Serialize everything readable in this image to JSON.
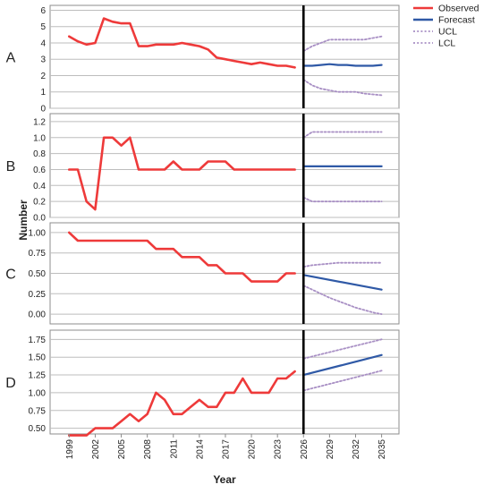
{
  "colors": {
    "observed": "#ee3a3a",
    "forecast": "#2f59a6",
    "ucl": "#a88fc4",
    "lcl": "#a88fc4",
    "grid": "#bdbdbd",
    "divider": "#000000",
    "frame": "#8c8c8c",
    "text": "#222222"
  },
  "chart_data": {
    "type": "line",
    "xlabel": "Year",
    "ylabel": "Number",
    "x_ticks": [
      "1999",
      "2002",
      "2005",
      "2008",
      "2011",
      "2014",
      "2017",
      "2020",
      "2023",
      "2026",
      "2029",
      "2032",
      "2035"
    ],
    "xlim": [
      1996.8,
      2037
    ],
    "divider_year": 2026,
    "grid": true,
    "legend": {
      "placement": "top-right",
      "entries": [
        {
          "key": "observed",
          "label": "Observed",
          "style": "solid"
        },
        {
          "key": "forecast",
          "label": "Forecast",
          "style": "solid"
        },
        {
          "key": "ucl",
          "label": "UCL",
          "style": "dotted"
        },
        {
          "key": "lcl",
          "label": "LCL",
          "style": "dotted"
        }
      ]
    },
    "panels": [
      {
        "label": "A",
        "ylim": [
          0,
          6.3
        ],
        "y_ticks": [
          "0",
          "1",
          "2",
          "3",
          "4",
          "5",
          "6"
        ],
        "y_tick_values": [
          0,
          1,
          2,
          3,
          4,
          5,
          6
        ],
        "observed": {
          "x": [
            1999,
            2000,
            2001,
            2002,
            2003,
            2004,
            2005,
            2006,
            2007,
            2008,
            2009,
            2010,
            2011,
            2012,
            2013,
            2014,
            2015,
            2016,
            2017,
            2018,
            2019,
            2020,
            2021,
            2022,
            2023,
            2024,
            2025
          ],
          "y": [
            4.4,
            4.1,
            3.9,
            4.0,
            5.5,
            5.3,
            5.2,
            5.2,
            3.8,
            3.8,
            3.9,
            3.9,
            3.9,
            4.0,
            3.9,
            3.8,
            3.6,
            3.1,
            3.0,
            2.9,
            2.8,
            2.7,
            2.8,
            2.7,
            2.6,
            2.6,
            2.5
          ]
        },
        "forecast": {
          "x": [
            2026,
            2027,
            2028,
            2029,
            2030,
            2031,
            2032,
            2033,
            2034,
            2035
          ],
          "y": [
            2.6,
            2.6,
            2.65,
            2.7,
            2.65,
            2.65,
            2.6,
            2.6,
            2.6,
            2.65
          ]
        },
        "ucl": {
          "x": [
            2026,
            2027,
            2028,
            2029,
            2030,
            2031,
            2032,
            2033,
            2034,
            2035
          ],
          "y": [
            3.5,
            3.8,
            4.0,
            4.2,
            4.2,
            4.2,
            4.2,
            4.2,
            4.3,
            4.4
          ]
        },
        "lcl": {
          "x": [
            2026,
            2027,
            2028,
            2029,
            2030,
            2031,
            2032,
            2033,
            2034,
            2035
          ],
          "y": [
            1.75,
            1.4,
            1.2,
            1.1,
            1.0,
            1.0,
            1.0,
            0.9,
            0.85,
            0.8
          ]
        }
      },
      {
        "label": "B",
        "ylim": [
          0,
          1.3
        ],
        "y_ticks": [
          "0.0",
          "0.2",
          "0.4",
          "0.6",
          "0.8",
          "1.0",
          "1.2"
        ],
        "y_tick_values": [
          0,
          0.2,
          0.4,
          0.6,
          0.8,
          1.0,
          1.2
        ],
        "observed": {
          "x": [
            1999,
            2000,
            2001,
            2002,
            2003,
            2004,
            2005,
            2006,
            2007,
            2008,
            2009,
            2010,
            2011,
            2012,
            2013,
            2014,
            2015,
            2016,
            2017,
            2018,
            2019,
            2020,
            2021,
            2022,
            2023,
            2024,
            2025
          ],
          "y": [
            0.6,
            0.6,
            0.2,
            0.1,
            1.0,
            1.0,
            0.9,
            1.0,
            0.6,
            0.6,
            0.6,
            0.6,
            0.7,
            0.6,
            0.6,
            0.6,
            0.7,
            0.7,
            0.7,
            0.6,
            0.6,
            0.6,
            0.6,
            0.6,
            0.6,
            0.6,
            0.6
          ]
        },
        "forecast": {
          "x": [
            2026,
            2035
          ],
          "y": [
            0.64,
            0.64
          ]
        },
        "ucl": {
          "x": [
            2026,
            2027,
            2035
          ],
          "y": [
            1.0,
            1.07,
            1.07
          ]
        },
        "lcl": {
          "x": [
            2026,
            2027,
            2035
          ],
          "y": [
            0.25,
            0.2,
            0.2
          ]
        }
      },
      {
        "label": "C",
        "ylim": [
          -0.12,
          1.12
        ],
        "y_ticks": [
          "0.00",
          "0.25",
          "0.50",
          "0.75",
          "1.00"
        ],
        "y_tick_values": [
          0,
          0.25,
          0.5,
          0.75,
          1.0
        ],
        "observed": {
          "x": [
            1999,
            2000,
            2001,
            2002,
            2003,
            2004,
            2005,
            2006,
            2007,
            2008,
            2009,
            2010,
            2011,
            2012,
            2013,
            2014,
            2015,
            2016,
            2017,
            2018,
            2019,
            2020,
            2021,
            2022,
            2023,
            2024,
            2025
          ],
          "y": [
            1.0,
            0.9,
            0.9,
            0.9,
            0.9,
            0.9,
            0.9,
            0.9,
            0.9,
            0.9,
            0.8,
            0.8,
            0.8,
            0.7,
            0.7,
            0.7,
            0.6,
            0.6,
            0.5,
            0.5,
            0.5,
            0.4,
            0.4,
            0.4,
            0.4,
            0.5,
            0.5
          ]
        },
        "forecast": {
          "x": [
            2026,
            2035
          ],
          "y": [
            0.48,
            0.3
          ]
        },
        "ucl": {
          "x": [
            2026,
            2027,
            2028,
            2029,
            2030,
            2031,
            2032,
            2033,
            2034,
            2035
          ],
          "y": [
            0.58,
            0.6,
            0.61,
            0.62,
            0.63,
            0.63,
            0.63,
            0.63,
            0.63,
            0.63
          ]
        },
        "lcl": {
          "x": [
            2026,
            2027,
            2028,
            2029,
            2030,
            2031,
            2032,
            2033,
            2034,
            2035
          ],
          "y": [
            0.35,
            0.3,
            0.25,
            0.2,
            0.16,
            0.12,
            0.08,
            0.05,
            0.02,
            0.0
          ]
        }
      },
      {
        "label": "D",
        "ylim": [
          0.42,
          1.88
        ],
        "y_ticks": [
          "0.50",
          "0.75",
          "1.00",
          "1.25",
          "1.50",
          "1.75"
        ],
        "y_tick_values": [
          0.5,
          0.75,
          1.0,
          1.25,
          1.5,
          1.75
        ],
        "observed": {
          "x": [
            1999,
            2000,
            2001,
            2002,
            2003,
            2004,
            2005,
            2006,
            2007,
            2008,
            2009,
            2010,
            2011,
            2012,
            2013,
            2014,
            2015,
            2016,
            2017,
            2018,
            2019,
            2020,
            2021,
            2022,
            2023,
            2024,
            2025
          ],
          "y": [
            0.4,
            0.4,
            0.4,
            0.5,
            0.5,
            0.5,
            0.6,
            0.7,
            0.6,
            0.7,
            1.0,
            0.9,
            0.7,
            0.7,
            0.8,
            0.9,
            0.8,
            0.8,
            1.0,
            1.0,
            1.2,
            1.0,
            1.0,
            1.0,
            1.2,
            1.2,
            1.3
          ]
        },
        "forecast": {
          "x": [
            2026,
            2035
          ],
          "y": [
            1.25,
            1.53
          ]
        },
        "ucl": {
          "x": [
            2026,
            2035
          ],
          "y": [
            1.48,
            1.75
          ]
        },
        "lcl": {
          "x": [
            2026,
            2035
          ],
          "y": [
            1.03,
            1.31
          ]
        }
      }
    ]
  }
}
